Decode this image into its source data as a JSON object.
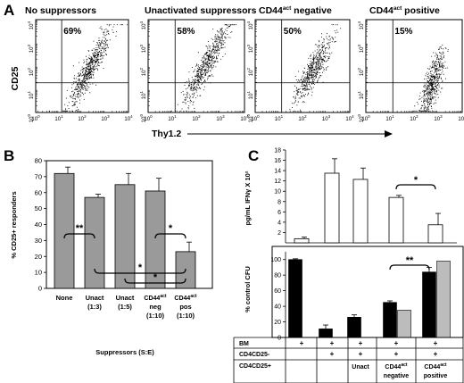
{
  "panel_a": {
    "letter": "A",
    "plots": [
      {
        "title": "No suppressors",
        "percent": "69%"
      },
      {
        "title": "Unactivated suppressors",
        "percent": "58%"
      },
      {
        "title_main": "CD44",
        "title_sup": "act",
        "title_rest": " negative",
        "percent": "50%"
      },
      {
        "title_main": "CD44",
        "title_sup": "act",
        "title_rest": " positive",
        "percent": "15%"
      }
    ],
    "y_label": "CD25",
    "x_label": "Thy1.2",
    "tick_exponents": [
      "0",
      "1",
      "2",
      "3",
      "4"
    ],
    "tick_base": "10"
  },
  "panel_b": {
    "letter": "B",
    "ylabel": "% CD25+ responders",
    "xlabel": "Suppressors (S:E)",
    "chart_data": {
      "type": "bar",
      "categories": [
        "None",
        "Unact (1:3)",
        "Unact (1:5)",
        "CD44act neg (1:10)",
        "CD44act pos (1:10)"
      ],
      "values": [
        72,
        57,
        65,
        61,
        23
      ],
      "errors": [
        4,
        2,
        7,
        8,
        6
      ],
      "ylim": [
        0,
        80
      ],
      "yticks": [
        "0",
        "10",
        "20",
        "30",
        "40",
        "50",
        "60",
        "70",
        "80"
      ],
      "significance": [
        "**",
        "*",
        "*",
        "*"
      ]
    },
    "cat_labels": [
      {
        "l1": "None",
        "l2": "",
        "l3": ""
      },
      {
        "l1": "Unact",
        "l2": "(1:3)",
        "l3": ""
      },
      {
        "l1": "Unact",
        "l2": "(1:5)",
        "l3": ""
      },
      {
        "l1": "CD44",
        "sup": "act",
        "l2": "neg",
        "l3": "(1:10)"
      },
      {
        "l1": "CD44",
        "sup": "act",
        "l2": "pos",
        "l3": "(1:10)"
      }
    ]
  },
  "panel_c": {
    "letter": "C",
    "top": {
      "ylabel": "pg/mL IFNγ X 10²",
      "yticks": [
        "2",
        "4",
        "6",
        "8",
        "10",
        "12",
        "14",
        "16",
        "18"
      ],
      "chart_data": {
        "type": "bar",
        "categories": [
          "BM",
          "BM + CD4CD25-",
          "Unact",
          "CD44act negative",
          "CD44act positive"
        ],
        "values": [
          0.8,
          13.5,
          12.3,
          8.8,
          3.5
        ],
        "errors": [
          0.3,
          2.8,
          2.2,
          0.4,
          2.2
        ],
        "ylim": [
          0,
          18
        ],
        "significance": [
          "*"
        ]
      }
    },
    "bottom": {
      "ylabel": "% control CFU",
      "yticks": [
        "0",
        "20",
        "40",
        "60",
        "80",
        "100"
      ],
      "chart_data": {
        "type": "bar",
        "categories": [
          "BM",
          "BM + CD4CD25-",
          "Unact",
          "CD44act negative",
          "CD44act positive"
        ],
        "series": [
          {
            "values": [
              100,
              11,
              26,
              45,
              84
            ],
            "errors": [
              1,
              5,
              3,
              2,
              6
            ],
            "color": "#000000"
          },
          {
            "values": [
              null,
              null,
              null,
              35,
              98
            ],
            "errors": [
              null,
              null,
              null,
              0,
              0
            ],
            "color": "#bcbcbc"
          }
        ],
        "ylim": [
          0,
          110
        ],
        "significance": [
          "**"
        ]
      }
    },
    "table": {
      "rows": [
        {
          "label": "BM",
          "cells": [
            "+",
            "+",
            "+",
            "+",
            "+"
          ]
        },
        {
          "label": "CD4CD25-",
          "cells": [
            "",
            "+",
            "+",
            "+",
            "+"
          ]
        },
        {
          "label": "CD4CD25+",
          "cells": [
            "",
            "",
            "Unact",
            "CD44act negative",
            "CD44act positive"
          ]
        }
      ],
      "cd25pos_cells": [
        {
          "l1": "",
          "l2": ""
        },
        {
          "l1": "",
          "l2": ""
        },
        {
          "l1": "Unact",
          "l2": ""
        },
        {
          "l1": "CD44",
          "sup": "act",
          "l2": "negative"
        },
        {
          "l1": "CD44",
          "sup": "act",
          "l2": "positive"
        }
      ]
    }
  }
}
